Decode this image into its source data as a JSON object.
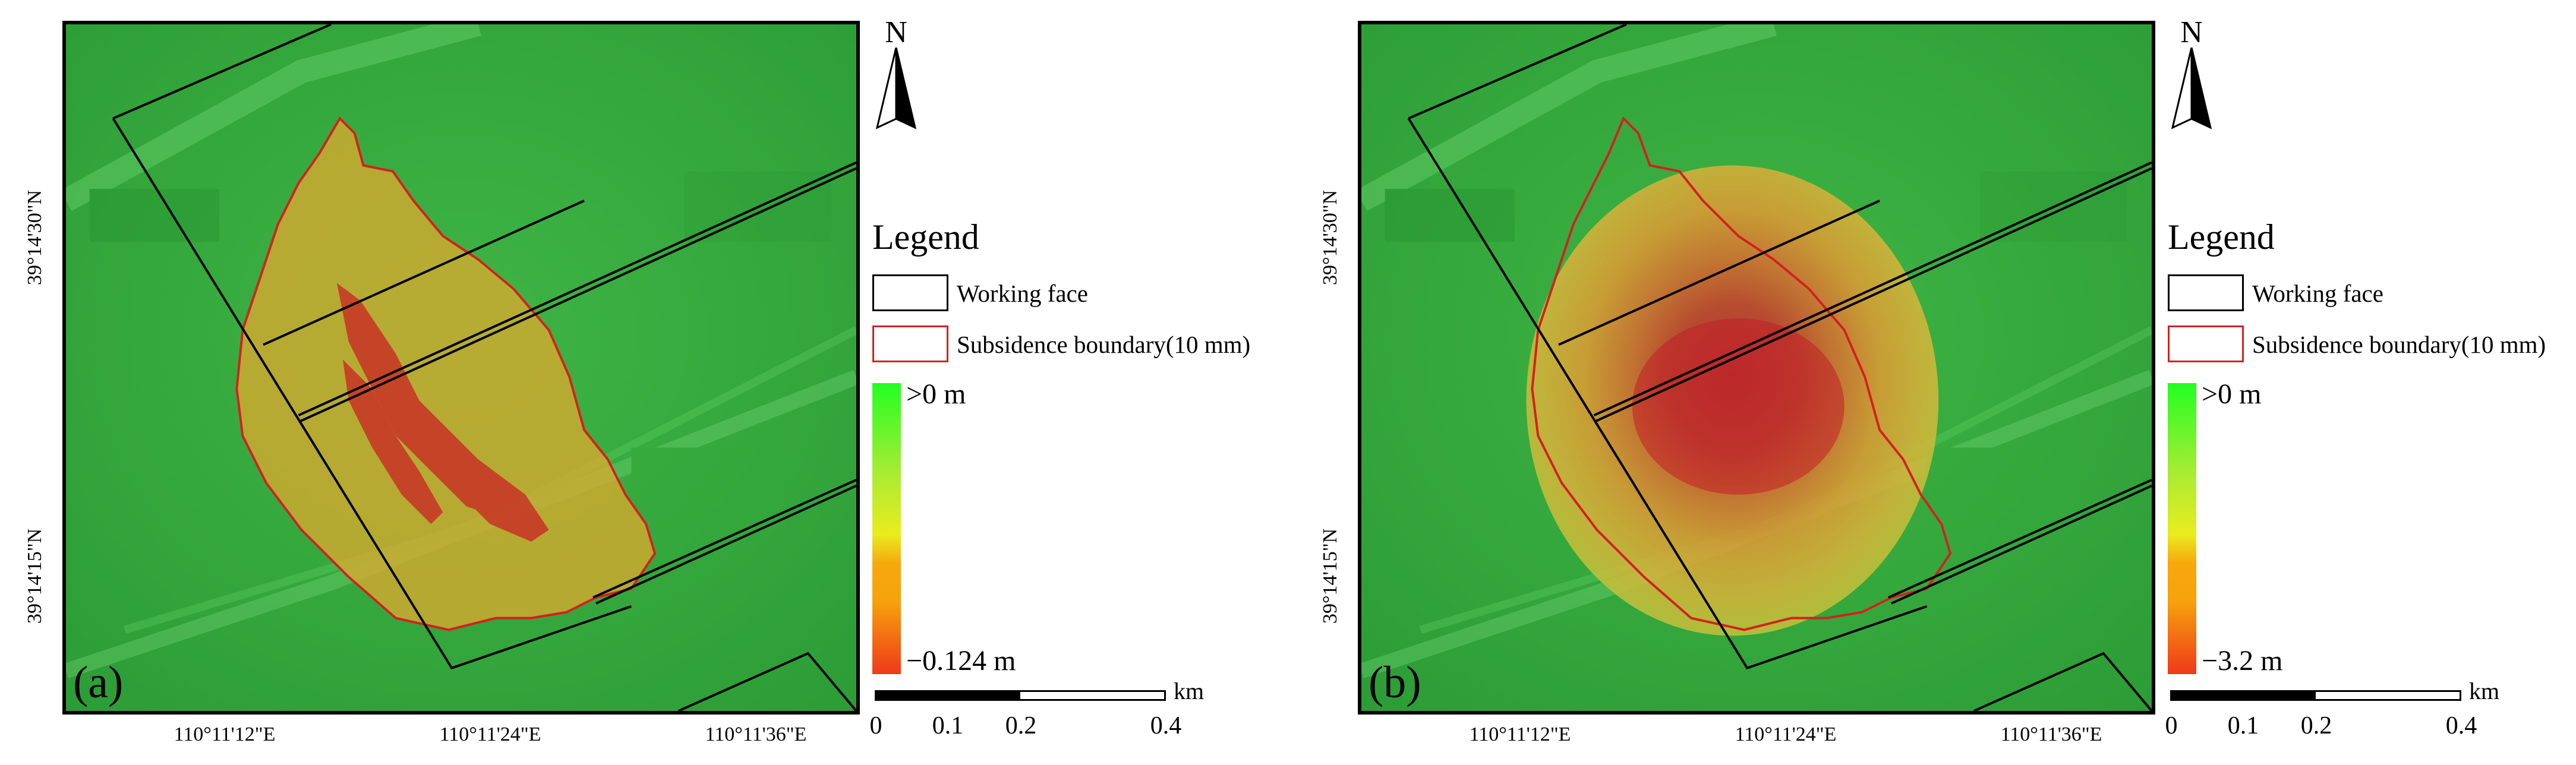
{
  "panels": [
    {
      "label": "(a)",
      "lat_labels": [
        "39°14'30\"N",
        "39°14'15\"N"
      ],
      "lon_labels": [
        "110°11'12\"E",
        "110°11'24\"E",
        "110°11'36\"E"
      ],
      "north": "N",
      "legend": {
        "title": "Legend",
        "items": [
          {
            "label": "Working face",
            "color": "#000000"
          },
          {
            "label": "Subsidence boundary(10 mm)",
            "color": "#d42020"
          }
        ],
        "ramp_max": ">0 m",
        "ramp_min": "−0.124 m"
      },
      "scale": {
        "unit": "km",
        "ticks": [
          "0",
          "0.1",
          "0.2",
          "0.4"
        ]
      }
    },
    {
      "label": "(b)",
      "lat_labels": [
        "39°14'30\"N",
        "39°14'15\"N"
      ],
      "lon_labels": [
        "110°11'12\"E",
        "110°11'24\"E",
        "110°11'36\"E"
      ],
      "north": "N",
      "legend": {
        "title": "Legend",
        "items": [
          {
            "label": "Working face",
            "color": "#000000"
          },
          {
            "label": "Subsidence boundary(10 mm)",
            "color": "#d42020"
          }
        ],
        "ramp_max": ">0 m",
        "ramp_min": "−3.2 m"
      },
      "scale": {
        "unit": "km",
        "ticks": [
          "0",
          "0.1",
          "0.2",
          "0.4"
        ]
      }
    }
  ]
}
